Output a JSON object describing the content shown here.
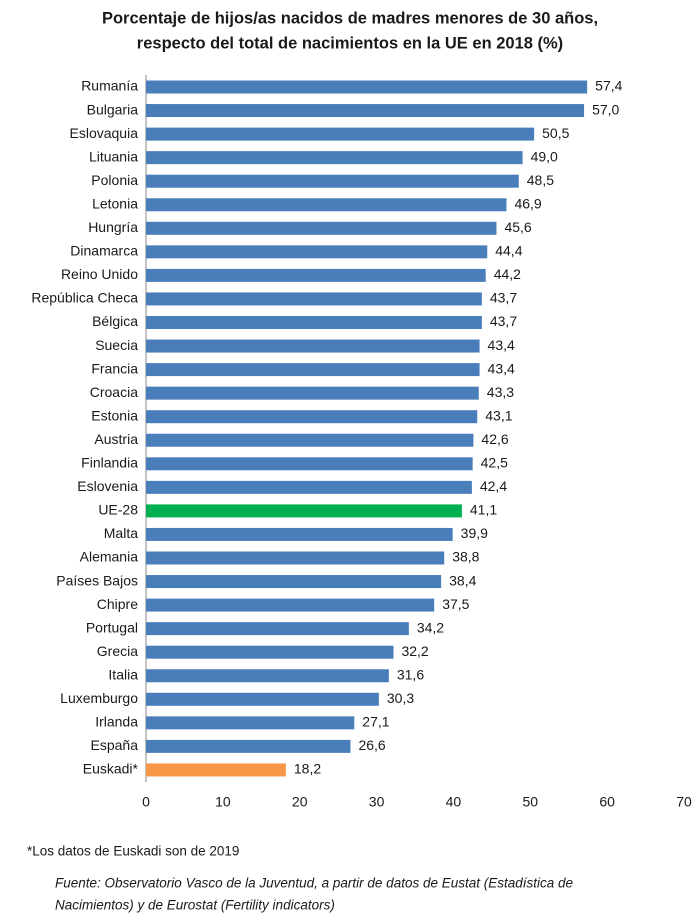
{
  "chart_data": {
    "type": "hbar",
    "title": [
      "Porcentaje de hijos/as nacidos de madres menores de 30 años,",
      "respecto del total de nacimientos en la UE en 2018 (%)"
    ],
    "categories": [
      "Rumanía",
      "Bulgaria",
      "Eslovaquia",
      "Lituania",
      "Polonia",
      "Letonia",
      "Hungría",
      "Dinamarca",
      "Reino Unido",
      "República Checa",
      "Bélgica",
      "Suecia",
      "Francia",
      "Croacia",
      "Estonia",
      "Austria",
      "Finlandia",
      "Eslovenia",
      "UE-28",
      "Malta",
      "Alemania",
      "Países Bajos",
      "Chipre",
      "Portugal",
      "Grecia",
      "Italia",
      "Luxemburgo",
      "Irlanda",
      "España",
      "Euskadi*"
    ],
    "values": [
      57.4,
      57.0,
      50.5,
      49.0,
      48.5,
      46.9,
      45.6,
      44.4,
      44.2,
      43.7,
      43.7,
      43.4,
      43.4,
      43.3,
      43.1,
      42.6,
      42.5,
      42.4,
      41.1,
      39.9,
      38.8,
      38.4,
      37.5,
      34.2,
      32.2,
      31.6,
      30.3,
      27.1,
      26.6,
      18.2
    ],
    "value_labels": [
      "57,4",
      "57,0",
      "50,5",
      "49,0",
      "48,5",
      "46,9",
      "45,6",
      "44,4",
      "44,2",
      "43,7",
      "43,7",
      "43,4",
      "43,4",
      "43,3",
      "43,1",
      "42,6",
      "42,5",
      "42,4",
      "41,1",
      "39,9",
      "38,8",
      "38,4",
      "37,5",
      "34,2",
      "32,2",
      "31,6",
      "30,3",
      "27,1",
      "26,6",
      "18,2"
    ],
    "colors": [
      "#4a7ebb",
      "#4a7ebb",
      "#4a7ebb",
      "#4a7ebb",
      "#4a7ebb",
      "#4a7ebb",
      "#4a7ebb",
      "#4a7ebb",
      "#4a7ebb",
      "#4a7ebb",
      "#4a7ebb",
      "#4a7ebb",
      "#4a7ebb",
      "#4a7ebb",
      "#4a7ebb",
      "#4a7ebb",
      "#4a7ebb",
      "#4a7ebb",
      "#00b050",
      "#4a7ebb",
      "#4a7ebb",
      "#4a7ebb",
      "#4a7ebb",
      "#4a7ebb",
      "#4a7ebb",
      "#4a7ebb",
      "#4a7ebb",
      "#4a7ebb",
      "#4a7ebb",
      "#f79646"
    ],
    "xlim": [
      0,
      70
    ],
    "xticks": [
      0,
      10,
      20,
      30,
      40,
      50,
      60,
      70
    ],
    "grid": false,
    "note": "*Los datos de Euskadi son de 2019",
    "source": [
      "Fuente: Observatorio Vasco de la Juventud, a partir de datos de Eustat (Estadística de",
      "Nacimientos) y de Eurostat (Fertility indicators)"
    ]
  }
}
